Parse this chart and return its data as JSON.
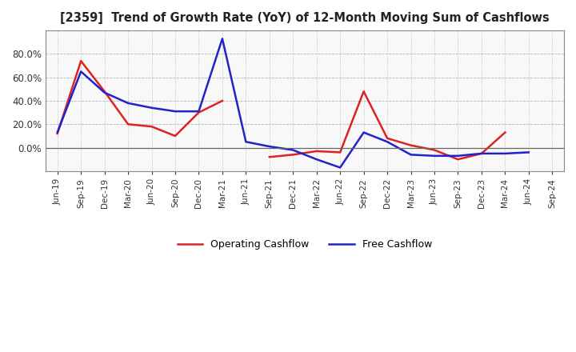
{
  "title": "[2359]  Trend of Growth Rate (YoY) of 12-Month Moving Sum of Cashflows",
  "x_labels": [
    "Jun-19",
    "Sep-19",
    "Dec-19",
    "Mar-20",
    "Jun-20",
    "Sep-20",
    "Dec-20",
    "Mar-21",
    "Jun-21",
    "Sep-21",
    "Dec-21",
    "Mar-22",
    "Jun-22",
    "Sep-22",
    "Dec-22",
    "Mar-23",
    "Jun-23",
    "Sep-23",
    "Dec-23",
    "Mar-24",
    "Jun-24",
    "Sep-24"
  ],
  "operating_cashflow": [
    0.12,
    0.74,
    0.48,
    0.2,
    0.18,
    0.1,
    0.3,
    0.4,
    null,
    -0.08,
    -0.06,
    -0.03,
    -0.04,
    0.48,
    0.08,
    0.02,
    -0.02,
    -0.1,
    -0.05,
    0.13,
    null,
    null
  ],
  "free_cashflow": [
    0.13,
    0.65,
    0.47,
    0.38,
    0.34,
    0.31,
    0.31,
    0.93,
    0.05,
    0.01,
    -0.02,
    -0.1,
    -0.17,
    0.13,
    0.05,
    -0.06,
    -0.07,
    -0.07,
    -0.05,
    -0.05,
    -0.04,
    null
  ],
  "ylim": [
    -0.2,
    1.0
  ],
  "yticks": [
    0.0,
    0.2,
    0.4,
    0.6,
    0.8
  ],
  "legend_labels": [
    "Operating Cashflow",
    "Free Cashflow"
  ],
  "operating_color": "#dd2222",
  "free_color": "#2222cc",
  "background_color": "#ffffff",
  "grid_color": "#999999",
  "plot_bg_color": "#f8f8f8"
}
